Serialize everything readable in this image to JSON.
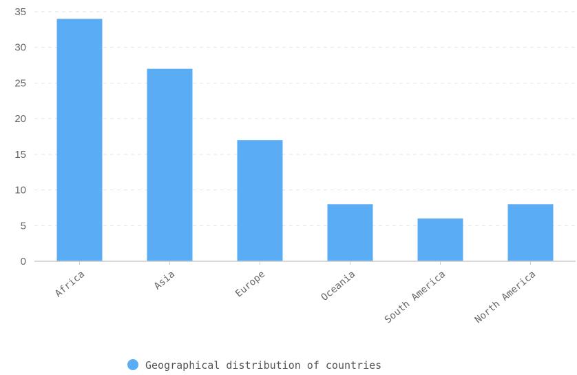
{
  "chart_data": {
    "type": "bar",
    "categories": [
      "Africa",
      "Asia",
      "Europe",
      "Oceania",
      "South America",
      "North America"
    ],
    "series": [
      {
        "name": "Geographical distribution of countries",
        "values": [
          34,
          27,
          17,
          8,
          6,
          8
        ]
      }
    ],
    "ylim": [
      0,
      35
    ],
    "yticks": [
      0,
      5,
      10,
      15,
      20,
      25,
      30,
      35
    ],
    "grid": true,
    "legend_position": "bottom",
    "title": "",
    "xlabel": "",
    "ylabel": ""
  },
  "colors": {
    "bar": "#5aacf5",
    "grid": "#e3e3e3",
    "axis": "#cccccc"
  }
}
